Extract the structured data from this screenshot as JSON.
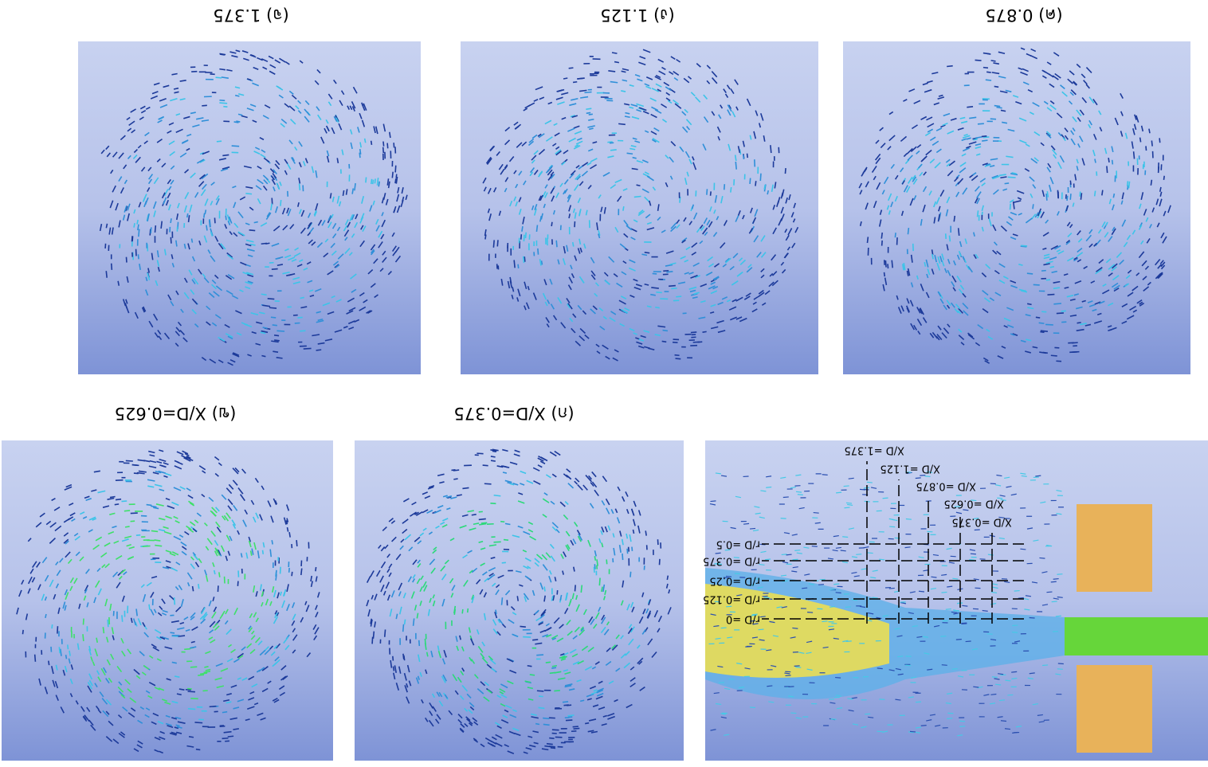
{
  "diagram": {
    "xd_labels": [
      "X/D =0.375",
      "X/D =0.625",
      "X/D =0.875",
      "X/D =1.125",
      "X/D =1.375"
    ],
    "rd_labels": [
      "r/D =0",
      "r/D =0.125",
      "r/D =0.25",
      "r/D =0.375",
      "r/D =0.5"
    ]
  },
  "panels": [
    {
      "label": "(ก) X/D=0.375"
    },
    {
      "label": "(ข) X/D=0.625"
    },
    {
      "label": "(ค) 0.875"
    },
    {
      "label": "(ง) 1.125"
    },
    {
      "label": "(จ) 1.375"
    }
  ]
}
